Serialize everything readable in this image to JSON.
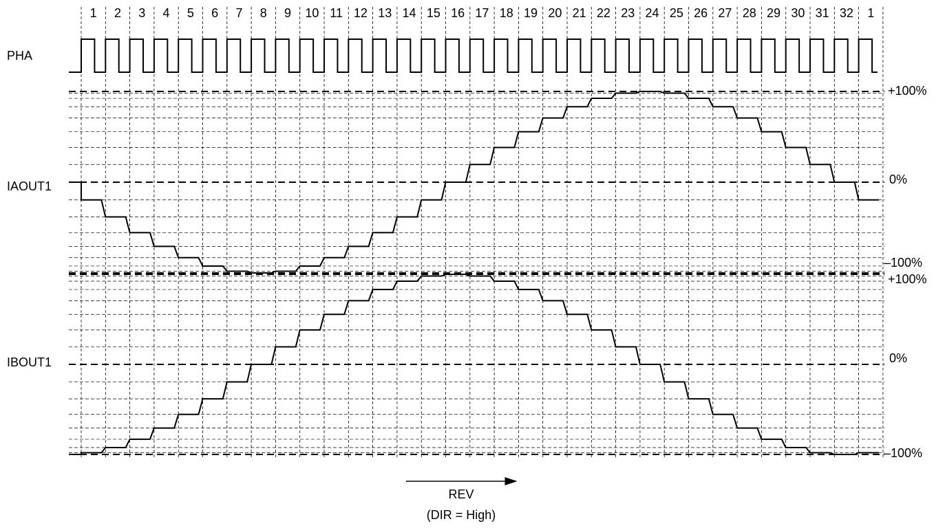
{
  "step_labels": [
    1,
    2,
    3,
    4,
    5,
    6,
    7,
    8,
    9,
    10,
    11,
    12,
    13,
    14,
    15,
    16,
    17,
    18,
    19,
    20,
    21,
    22,
    23,
    24,
    25,
    26,
    27,
    28,
    29,
    30,
    31,
    32,
    1
  ],
  "signals": [
    {
      "label": "PHA"
    },
    {
      "label": "IAOUT1",
      "levels": [
        "+100%",
        "0%",
        "–100%"
      ]
    },
    {
      "label": "IBOUT1",
      "levels": [
        "+100%",
        "0%",
        "–100%"
      ]
    }
  ],
  "direction": {
    "label": "REV",
    "note": "(DIR = High)"
  }
}
